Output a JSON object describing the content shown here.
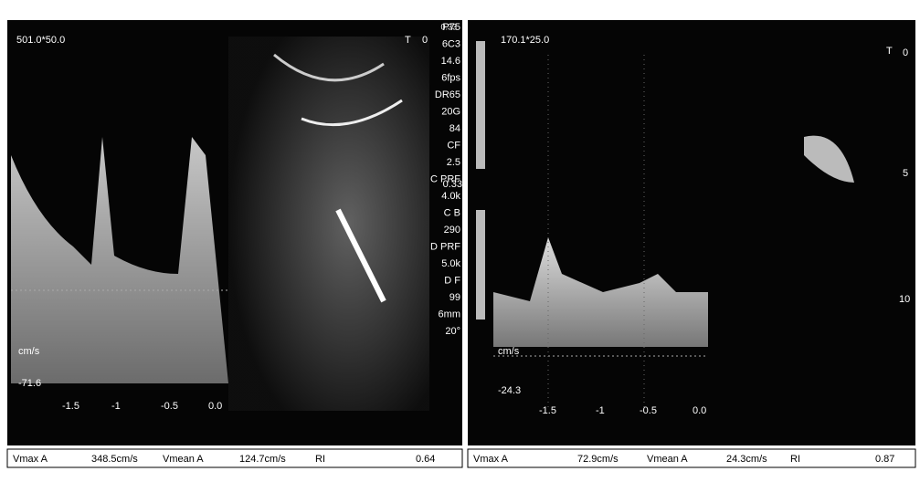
{
  "left_panel": {
    "scale": "501.0*50.0",
    "unit": "cm/s",
    "axis_min": "-71.6",
    "time_ticks": [
      "-1.5",
      "-1",
      "-0.5",
      "0.0"
    ],
    "marker": "T",
    "depth_marker": "0",
    "settings": [
      "P75",
      "6C3",
      "14.6",
      "6fps",
      "DR65",
      "20G",
      "84",
      "CF",
      "2.5",
      "C PRF",
      "4.0k",
      "C B",
      "290",
      "D PRF",
      "5.0k",
      "D F",
      "99",
      "6mm",
      "20°"
    ],
    "scale_top": "0.33",
    "scale_bottom": "0.33"
  },
  "right_panel": {
    "scale": "170.1*25.0",
    "unit": "cm/s",
    "axis_min": "-24.3",
    "time_ticks": [
      "-1.5",
      "-1",
      "-0.5",
      "0.0"
    ],
    "marker": "T",
    "depth_marks": [
      "0",
      "5",
      "10"
    ]
  },
  "left_measurements": [
    "Vmax A",
    "348.5cm/s",
    "Vmean A",
    "124.7cm/s",
    "RI",
    "0.64"
  ],
  "right_measurements": [
    "Vmax A",
    "72.9cm/s",
    "Vmean A",
    "24.3cm/s",
    "RI",
    "0.87"
  ]
}
